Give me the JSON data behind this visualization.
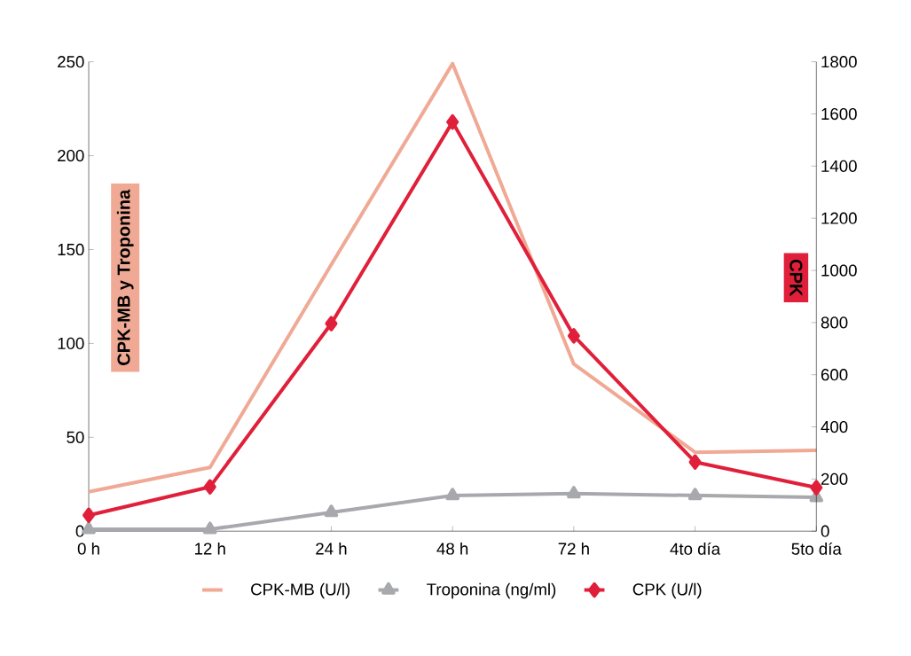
{
  "chart_data": {
    "type": "line",
    "categories": [
      "0 h",
      "12 h",
      "24 h",
      "48 h",
      "72 h",
      "4to día",
      "5to día"
    ],
    "ylabel": "CPK-MB y Troponina",
    "y2label": "CPK",
    "ylim": [
      0,
      250
    ],
    "yticks": [
      0,
      50,
      100,
      150,
      200,
      250
    ],
    "y2lim": [
      0,
      1800
    ],
    "y2ticks": [
      0,
      200,
      400,
      600,
      800,
      1000,
      1200,
      1400,
      1600,
      1800
    ],
    "legend": "bottom",
    "grid": false,
    "series": [
      {
        "name": "CPK-MB (U/l)",
        "color": "#f0a994",
        "marker": "none",
        "values": [
          21,
          34,
          142,
          249,
          89,
          42,
          43
        ]
      },
      {
        "name": "Troponina (ng/ml)",
        "color": "#a7a9ac",
        "marker": "triangle",
        "values": [
          1,
          1,
          10,
          19,
          20,
          19,
          18
        ]
      },
      {
        "name": "CPK (U/l)",
        "color": "#e0203a",
        "marker": "diamond",
        "axis": "y2",
        "values": [
          61,
          170,
          796,
          1569,
          749,
          265,
          167
        ]
      }
    ]
  }
}
